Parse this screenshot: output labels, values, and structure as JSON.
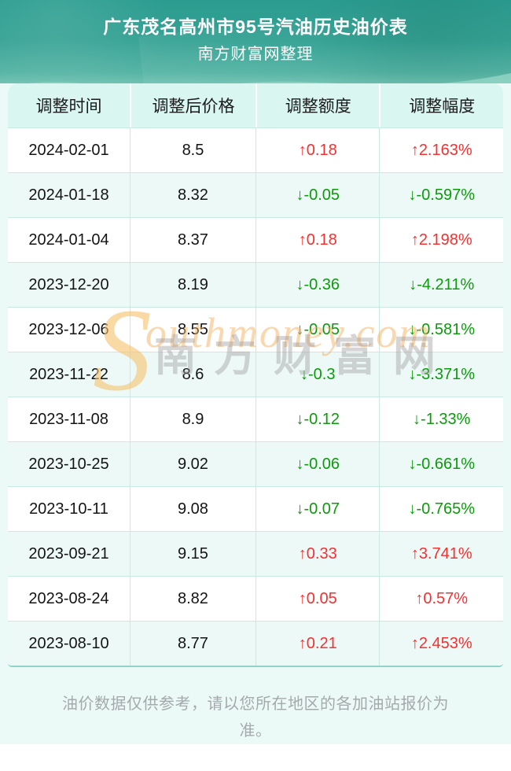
{
  "header": {
    "title": "广东茂名高州市95号汽油历史油价表",
    "subtitle": "南方财富网整理"
  },
  "table": {
    "columns": [
      "调整时间",
      "调整后价格",
      "调整额度",
      "调整幅度"
    ],
    "rows": [
      {
        "date": "2024-02-01",
        "price": "8.5",
        "change": "↑0.18",
        "percent": "↑2.163%",
        "direction": "up"
      },
      {
        "date": "2024-01-18",
        "price": "8.32",
        "change": "↓-0.05",
        "percent": "↓-0.597%",
        "direction": "down"
      },
      {
        "date": "2024-01-04",
        "price": "8.37",
        "change": "↑0.18",
        "percent": "↑2.198%",
        "direction": "up"
      },
      {
        "date": "2023-12-20",
        "price": "8.19",
        "change": "↓-0.36",
        "percent": "↓-4.211%",
        "direction": "down"
      },
      {
        "date": "2023-12-06",
        "price": "8.55",
        "change": "↓-0.05",
        "percent": "↓-0.581%",
        "direction": "down"
      },
      {
        "date": "2023-11-22",
        "price": "8.6",
        "change": "↓-0.3",
        "percent": "↓-3.371%",
        "direction": "down"
      },
      {
        "date": "2023-11-08",
        "price": "8.9",
        "change": "↓-0.12",
        "percent": "↓-1.33%",
        "direction": "down"
      },
      {
        "date": "2023-10-25",
        "price": "9.02",
        "change": "↓-0.06",
        "percent": "↓-0.661%",
        "direction": "down"
      },
      {
        "date": "2023-10-11",
        "price": "9.08",
        "change": "↓-0.07",
        "percent": "↓-0.765%",
        "direction": "down"
      },
      {
        "date": "2023-09-21",
        "price": "9.15",
        "change": "↑0.33",
        "percent": "↑3.741%",
        "direction": "up"
      },
      {
        "date": "2023-08-24",
        "price": "8.82",
        "change": "↑0.05",
        "percent": "↑0.57%",
        "direction": "up"
      },
      {
        "date": "2023-08-10",
        "price": "8.77",
        "change": "↑0.21",
        "percent": "↑2.453%",
        "direction": "up"
      }
    ]
  },
  "watermark": {
    "cn": "南方财富网",
    "en_s": "S",
    "en_rest": "outhmoney.com"
  },
  "footer": {
    "disclaimer": "油价数据仅供参考，请以您所在地区的各加油站报价为准。"
  },
  "colors": {
    "up_red": "#f53030",
    "down_green": "#0b9b0b",
    "hero_teal_top": "#2b9c90",
    "table_header_bg": "#d9f6f1",
    "row_tint": "#edf9f7",
    "page_bg": "#ecfaf7",
    "wave_mint": "#8fd4c4",
    "wave_light": "#c6eedd",
    "watermark_orange": "#f3b060",
    "watermark_grey": "#969696"
  }
}
